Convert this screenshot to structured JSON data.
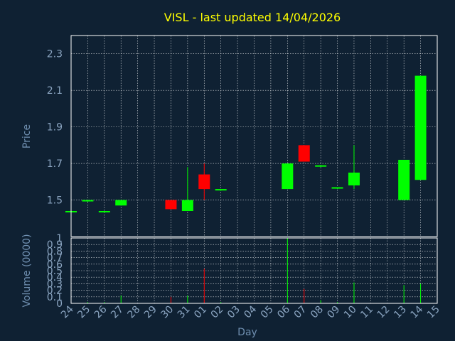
{
  "chart_data": {
    "type": "candlestick",
    "title": "VISL - last updated 14/04/2026",
    "xlabel": "Day",
    "ylabel": "Price",
    "volume_label": "Volume (0000)",
    "grid": true,
    "colors": {
      "background": "#0f2133",
      "up": "#00ff00",
      "down": "#ff0000",
      "axis": "#ffffff",
      "title": "#ffff00",
      "label": "#6f8fb0"
    },
    "x_tick_labels": [
      "24",
      "25",
      "26",
      "27",
      "28",
      "29",
      "30",
      "31",
      "01",
      "02",
      "03",
      "04",
      "05",
      "06",
      "07",
      "08",
      "09",
      "10",
      "11",
      "12",
      "13",
      "14",
      "15"
    ],
    "price_axis": {
      "ticks": [
        "1.5",
        "1.7",
        "1.9",
        "2.1",
        "2.3"
      ],
      "tick_values": [
        1.5,
        1.7,
        1.9,
        2.1,
        2.3
      ],
      "ylim": [
        1.3,
        2.4
      ]
    },
    "volume_axis": {
      "ticks": [
        "1",
        "0.9",
        "0.8",
        "0.7",
        "0.6",
        "0.5",
        "0.4",
        "0.3",
        "0.2",
        "0.1",
        "0"
      ],
      "tick_values": [
        1.0,
        0.9,
        0.8,
        0.7,
        0.6,
        0.5,
        0.4,
        0.3,
        0.2,
        0.1,
        0.0
      ],
      "ylim": [
        0,
        1.0
      ]
    },
    "candles": [
      {
        "day": "24",
        "open": 1.44,
        "high": 1.44,
        "low": 1.43,
        "close": 1.44
      },
      {
        "day": "25",
        "open": 1.5,
        "high": 1.5,
        "low": 1.49,
        "close": 1.5
      },
      {
        "day": "26",
        "open": 1.44,
        "high": 1.44,
        "low": 1.43,
        "close": 1.44
      },
      {
        "day": "27",
        "open": 1.47,
        "high": 1.5,
        "low": 1.47,
        "close": 1.5
      },
      {
        "day": "30",
        "open": 1.5,
        "high": 1.5,
        "low": 1.45,
        "close": 1.45
      },
      {
        "day": "31",
        "open": 1.44,
        "high": 1.68,
        "low": 1.44,
        "close": 1.5
      },
      {
        "day": "01",
        "open": 1.64,
        "high": 1.7,
        "low": 1.5,
        "close": 1.56
      },
      {
        "day": "02",
        "open": 1.56,
        "high": 1.56,
        "low": 1.55,
        "close": 1.56
      },
      {
        "day": "06",
        "open": 1.56,
        "high": 1.7,
        "low": 1.56,
        "close": 1.7
      },
      {
        "day": "07",
        "open": 1.8,
        "high": 1.8,
        "low": 1.71,
        "close": 1.71
      },
      {
        "day": "08",
        "open": 1.69,
        "high": 1.69,
        "low": 1.68,
        "close": 1.69
      },
      {
        "day": "09",
        "open": 1.57,
        "high": 1.57,
        "low": 1.56,
        "close": 1.57
      },
      {
        "day": "10",
        "open": 1.58,
        "high": 1.8,
        "low": 1.56,
        "close": 1.65
      },
      {
        "day": "13",
        "open": 1.5,
        "high": 1.72,
        "low": 1.5,
        "close": 1.72
      },
      {
        "day": "14",
        "open": 1.61,
        "high": 2.18,
        "low": 1.61,
        "close": 2.18
      }
    ],
    "volume": [
      {
        "day": "24",
        "value": 0.02,
        "direction": "up"
      },
      {
        "day": "25",
        "value": 0.02,
        "direction": "up"
      },
      {
        "day": "26",
        "value": 0.02,
        "direction": "up"
      },
      {
        "day": "27",
        "value": 0.12,
        "direction": "up"
      },
      {
        "day": "30",
        "value": 0.1,
        "direction": "down"
      },
      {
        "day": "31",
        "value": 0.12,
        "direction": "up"
      },
      {
        "day": "01",
        "value": 0.53,
        "direction": "down"
      },
      {
        "day": "02",
        "value": 0.02,
        "direction": "up"
      },
      {
        "day": "06",
        "value": 1.0,
        "direction": "up"
      },
      {
        "day": "07",
        "value": 0.22,
        "direction": "down"
      },
      {
        "day": "08",
        "value": 0.05,
        "direction": "up"
      },
      {
        "day": "09",
        "value": 0.02,
        "direction": "up"
      },
      {
        "day": "10",
        "value": 0.32,
        "direction": "up"
      },
      {
        "day": "13",
        "value": 0.28,
        "direction": "up"
      },
      {
        "day": "14",
        "value": 0.3,
        "direction": "up"
      }
    ]
  }
}
